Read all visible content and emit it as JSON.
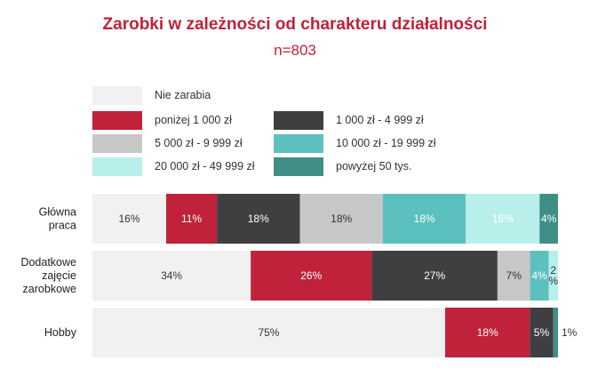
{
  "title": "Zarobki w zależności od charakteru działalności",
  "subtitle": "n=803",
  "colors": {
    "nie_zarabia": "#f1f1f1",
    "ponizej_1000": "#c0223b",
    "1000_4999": "#3f3f41",
    "5000_9999": "#c7c7c7",
    "10000_19999": "#5cc1be",
    "20000_49999": "#b9efea",
    "powyzej_50": "#3f8f86"
  },
  "legend": [
    {
      "label": "Nie zarabia",
      "color": "#f1f1f1"
    },
    {
      "label": "poniżej 1 000 zł",
      "color": "#c0223b"
    },
    {
      "label": "1 000 zł - 4 999 zł",
      "color": "#3f3f41"
    },
    {
      "label": "5 000 zł - 9 999 zł",
      "color": "#c7c7c7"
    },
    {
      "label": "10 000 zł - 19 999 zł",
      "color": "#5cc1be"
    },
    {
      "label": "20 000 zł - 49 999 zł",
      "color": "#b9efea"
    },
    {
      "label": "powyżej 50 tys.",
      "color": "#3f8f86"
    }
  ],
  "chart_data": {
    "type": "bar",
    "orientation": "horizontal",
    "stacked": true,
    "categories": [
      [
        "Główna",
        "praca"
      ],
      [
        "Dodatkowe",
        "zajęcie",
        "zarobkowe"
      ],
      [
        "Hobby"
      ]
    ],
    "series": [
      {
        "name": "Nie zarabia",
        "values": [
          16,
          34,
          75
        ],
        "labels": [
          "16%",
          "34%",
          "75%"
        ],
        "label_color": "#333333"
      },
      {
        "name": "poniżej 1 000 zł",
        "values": [
          11,
          26,
          18
        ],
        "labels": [
          "11%",
          "26%",
          "18%"
        ],
        "label_color": "#ffffff"
      },
      {
        "name": "1 000 zł - 4 999 zł",
        "values": [
          18,
          27,
          5
        ],
        "labels": [
          "18%",
          "27%",
          "5%"
        ],
        "label_color": "#ffffff"
      },
      {
        "name": "5 000 zł - 9 999 zł",
        "values": [
          18,
          7,
          0
        ],
        "labels": [
          "18%",
          "7%",
          ""
        ],
        "label_color": "#333333"
      },
      {
        "name": "10 000 zł - 19 999 zł",
        "values": [
          18,
          4,
          0
        ],
        "labels": [
          "18%",
          "4%",
          ""
        ],
        "label_color": "#ffffff"
      },
      {
        "name": "20 000 zł - 49 999 zł",
        "values": [
          16,
          2,
          0
        ],
        "labels": [
          "16%",
          "2 %",
          ""
        ],
        "label_color": "#ffffff"
      },
      {
        "name": "powyżej 50 tys.",
        "values": [
          4,
          0,
          1
        ],
        "labels": [
          "4%",
          "",
          "1%"
        ],
        "label_color": "#ffffff"
      }
    ],
    "unit": "%"
  }
}
